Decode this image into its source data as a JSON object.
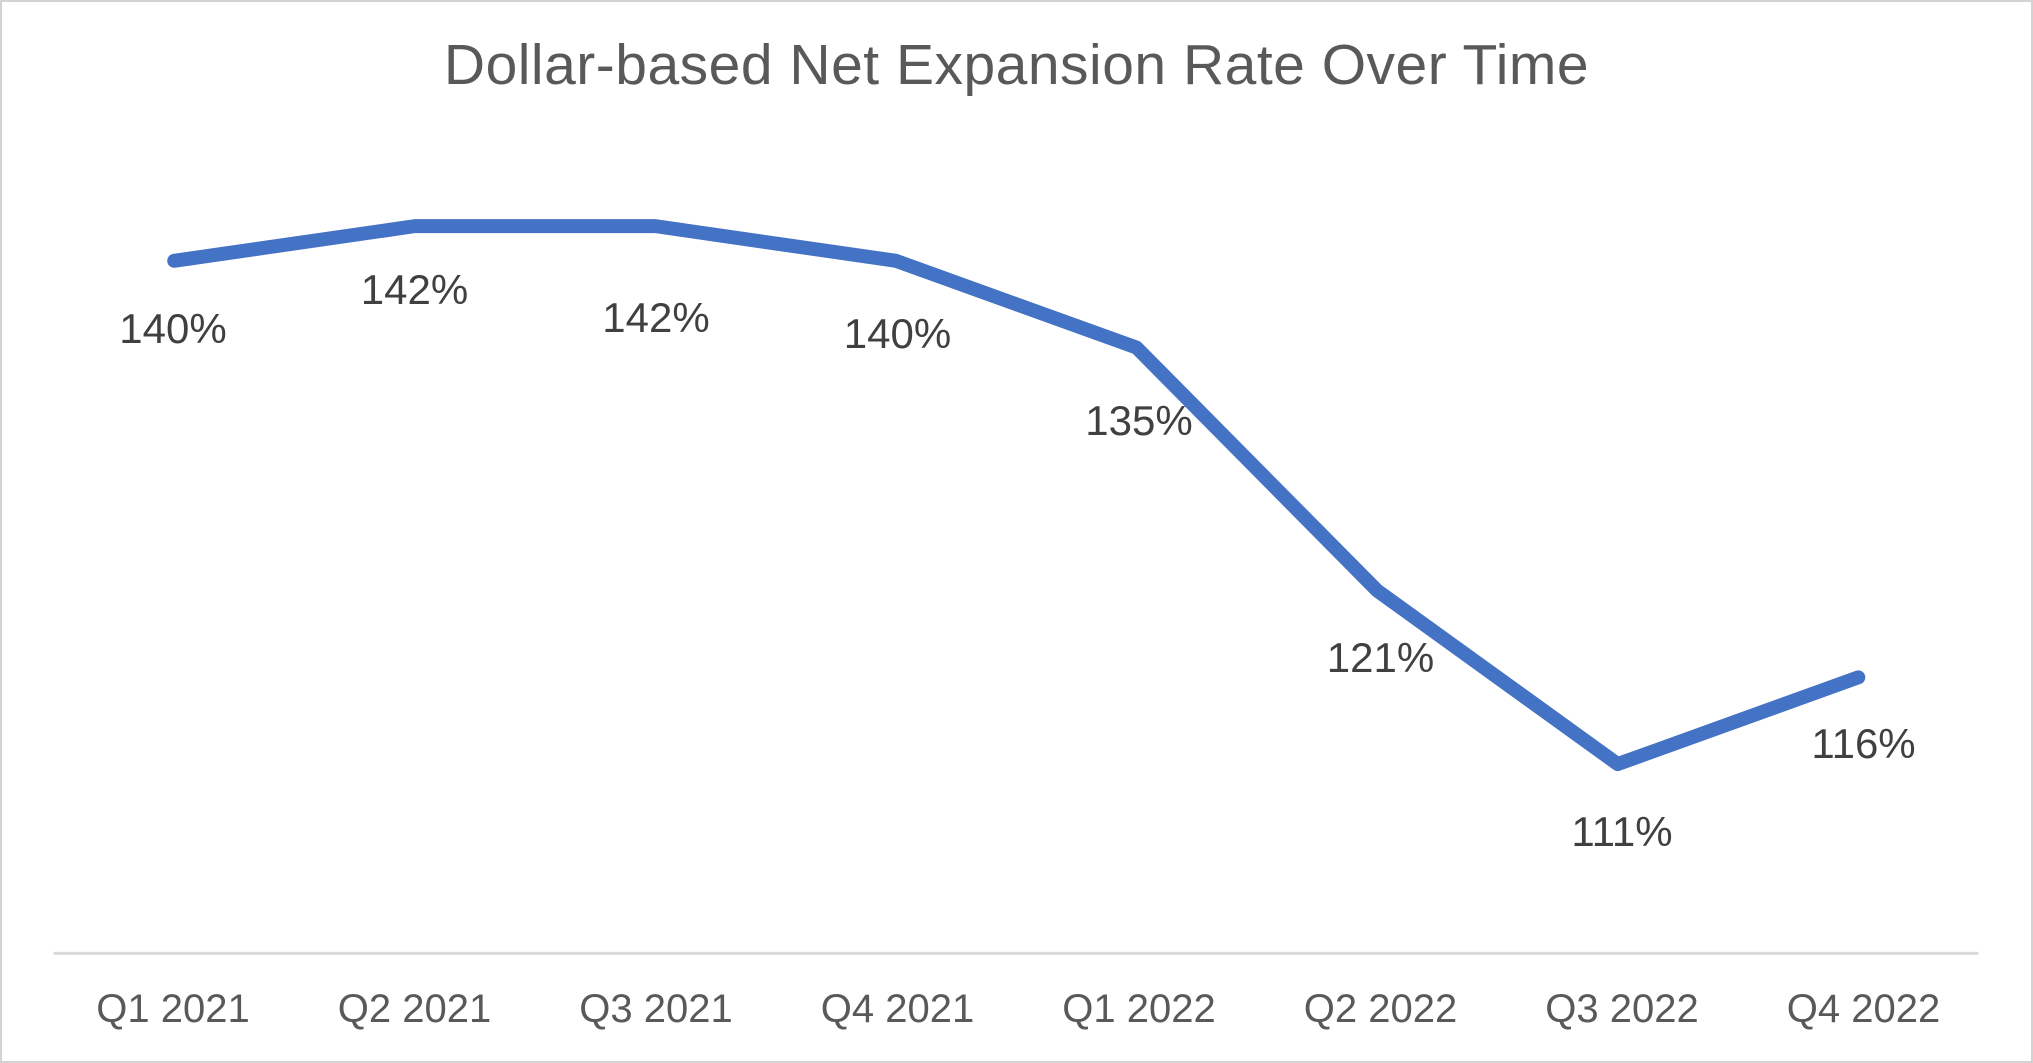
{
  "chart_data": {
    "type": "line",
    "title": "Dollar-based Net Expansion Rate Over Time",
    "categories": [
      "Q1 2021",
      "Q2 2021",
      "Q3 2021",
      "Q4 2021",
      "Q1 2022",
      "Q2 2022",
      "Q3 2022",
      "Q4 2022"
    ],
    "values": [
      140,
      142,
      142,
      140,
      135,
      121,
      111,
      116
    ],
    "data_labels": [
      "140%",
      "142%",
      "142%",
      "140%",
      "135%",
      "121%",
      "111%",
      "116%"
    ],
    "xlabel": "",
    "ylabel": "",
    "legend": "none",
    "grid": false,
    "y_axis_visible": false,
    "data_label_position": "below",
    "colors": {
      "line": "#4472C4",
      "title_text": "#595959",
      "axis_text": "#595959",
      "label_text": "#404040",
      "axis_line": "#D9D9D9",
      "border": "#D3D3D3",
      "background": "#FFFFFF"
    }
  }
}
